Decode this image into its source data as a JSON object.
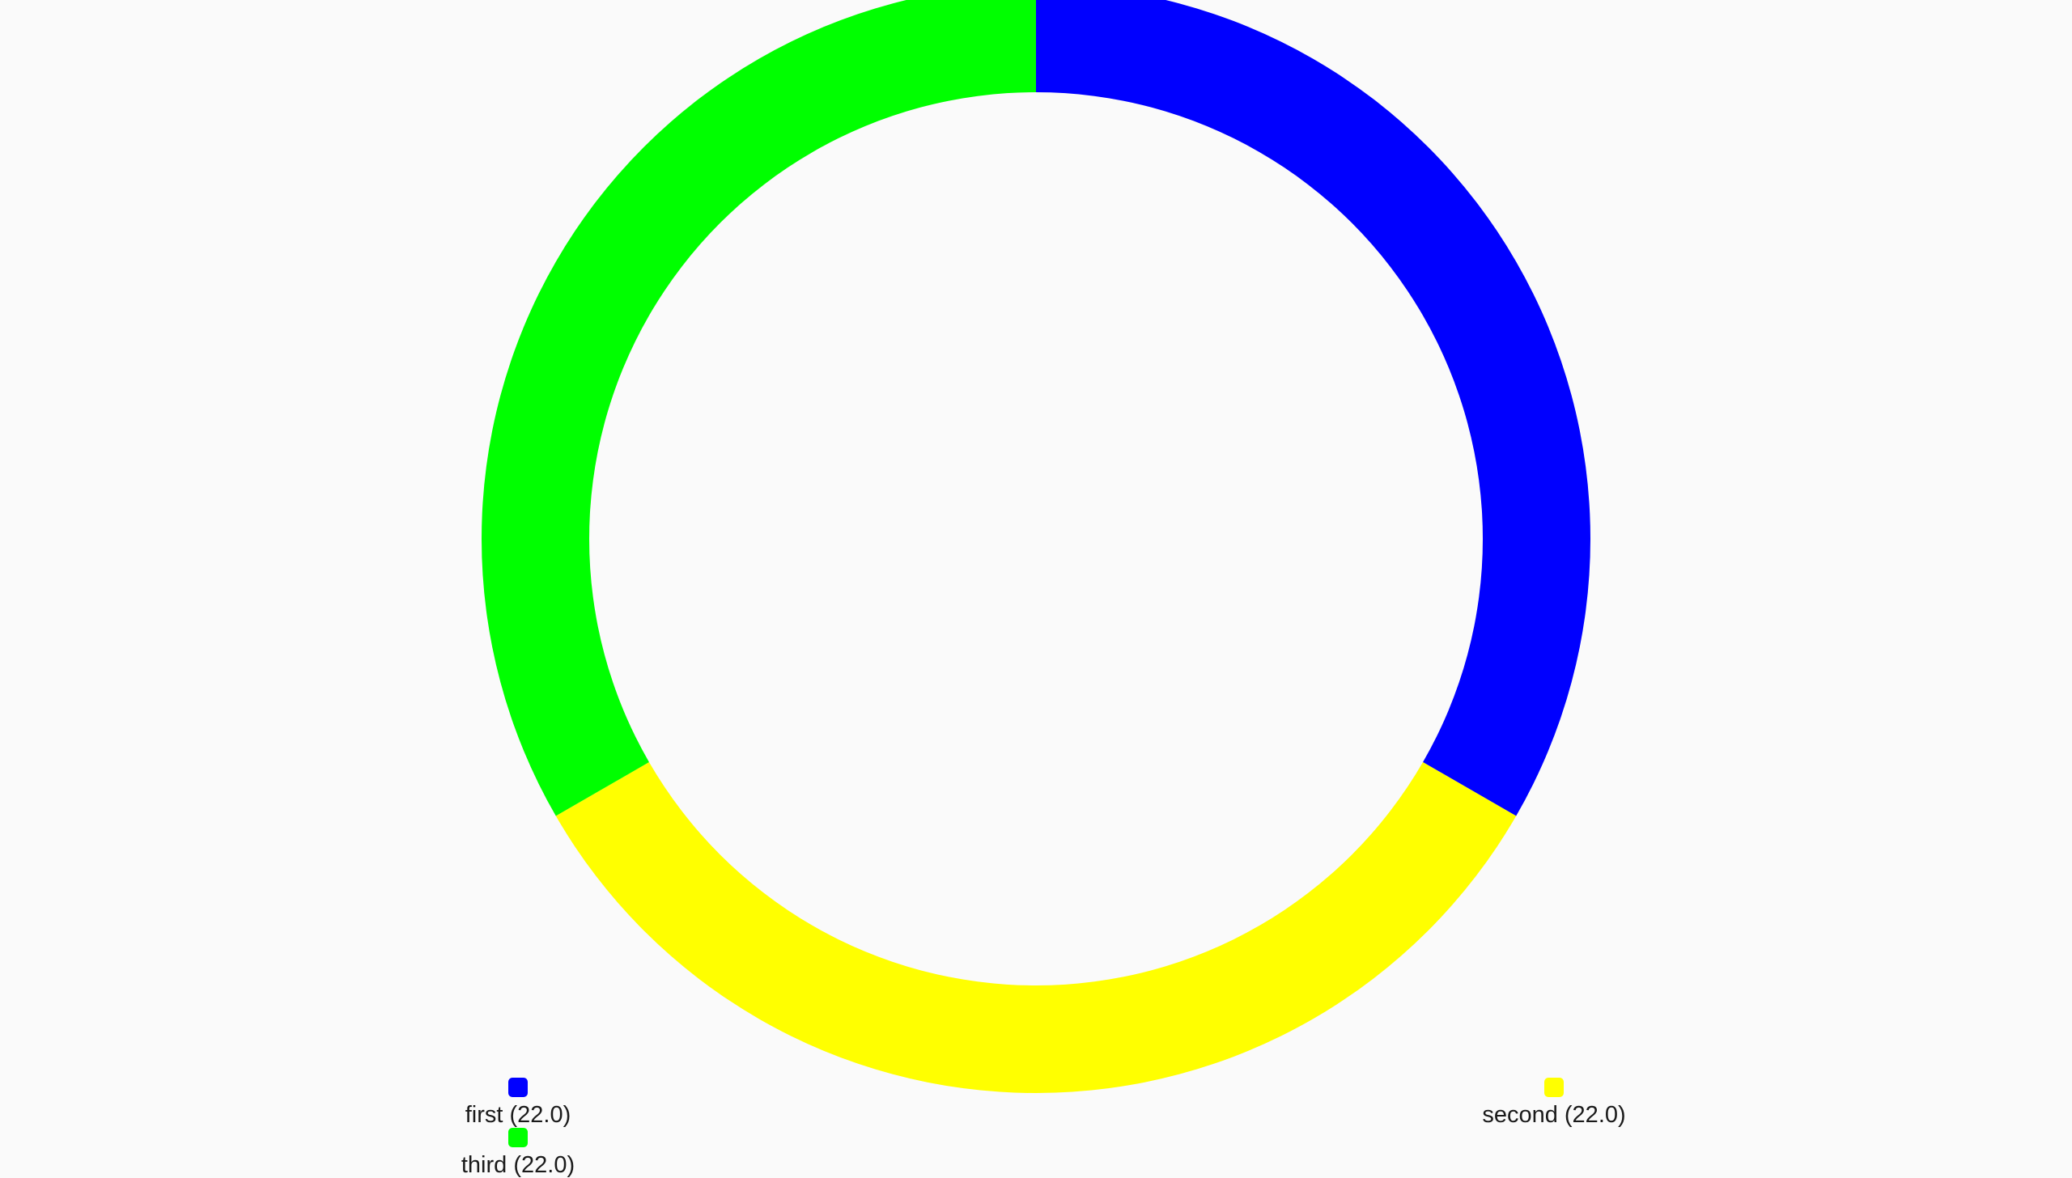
{
  "chart_data": {
    "type": "pie",
    "style": "donut",
    "start_angle_deg": 0,
    "direction": "clockwise",
    "slices": [
      {
        "label": "first",
        "value": 22.0,
        "value_label": "22.0",
        "legend_text": "first (22.0)",
        "color": "#0000ff"
      },
      {
        "label": "second",
        "value": 22.0,
        "value_label": "22.0",
        "legend_text": "second (22.0)",
        "color": "#ffff00"
      },
      {
        "label": "third",
        "value": 22.0,
        "value_label": "22.0",
        "legend_text": "third (22.0)",
        "color": "#00ff00"
      }
    ],
    "legend_placement": "bottom"
  }
}
